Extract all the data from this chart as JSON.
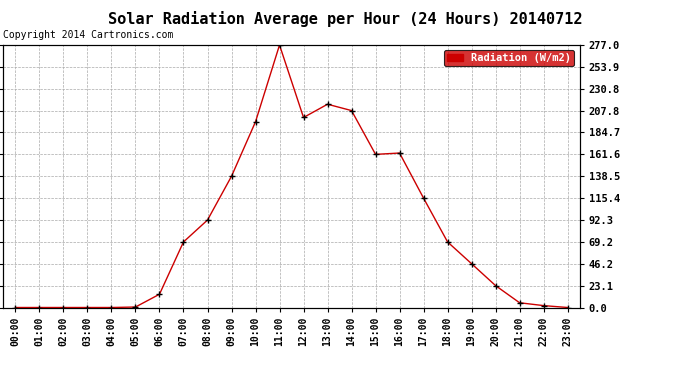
{
  "title": "Solar Radiation Average per Hour (24 Hours) 20140712",
  "copyright": "Copyright 2014 Cartronics.com",
  "legend_label": "Radiation (W/m2)",
  "hours": [
    "00:00",
    "01:00",
    "02:00",
    "03:00",
    "04:00",
    "05:00",
    "06:00",
    "07:00",
    "08:00",
    "09:00",
    "10:00",
    "11:00",
    "12:00",
    "13:00",
    "14:00",
    "15:00",
    "16:00",
    "17:00",
    "18:00",
    "19:00",
    "20:00",
    "21:00",
    "22:00",
    "23:00"
  ],
  "values": [
    0.0,
    0.0,
    0.0,
    0.0,
    0.0,
    0.5,
    14.0,
    69.2,
    92.3,
    138.5,
    196.0,
    277.0,
    200.5,
    214.5,
    207.8,
    161.6,
    163.0,
    115.4,
    69.2,
    46.2,
    23.1,
    5.0,
    2.0,
    0.0
  ],
  "line_color": "#cc0000",
  "marker_color": "#000000",
  "bg_color": "#ffffff",
  "grid_color": "#aaaaaa",
  "yticks": [
    0.0,
    23.1,
    46.2,
    69.2,
    92.3,
    115.4,
    138.5,
    161.6,
    184.7,
    207.8,
    230.8,
    253.9,
    277.0
  ],
  "ymax": 277.0,
  "title_fontsize": 11,
  "copyright_fontsize": 7,
  "legend_bg": "#cc0000",
  "legend_text_color": "#ffffff",
  "tick_fontsize": 7.5,
  "xtick_fontsize": 7
}
